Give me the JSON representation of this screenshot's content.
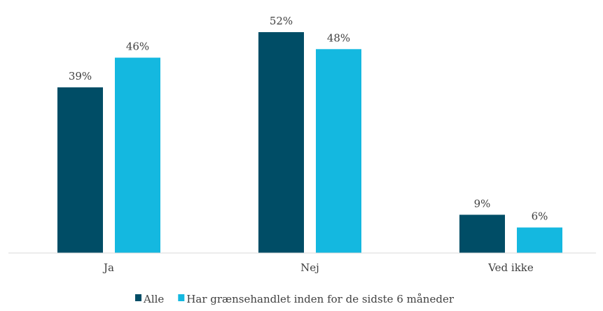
{
  "chart_data": {
    "type": "bar",
    "title": "",
    "xlabel": "",
    "ylabel": "",
    "categories": [
      "Ja",
      "Nej",
      "Ved ikke"
    ],
    "series": [
      {
        "name": "Alle",
        "values": [
          39,
          52,
          9
        ],
        "color": "#004d66"
      },
      {
        "name": "Har grænsehandlet inden for de sidste 6 måneder",
        "values": [
          46,
          48,
          6
        ],
        "color": "#14b8e0"
      }
    ],
    "value_suffix": "%",
    "ylim": [
      0,
      60
    ],
    "grid": false,
    "legend_position": "bottom"
  }
}
